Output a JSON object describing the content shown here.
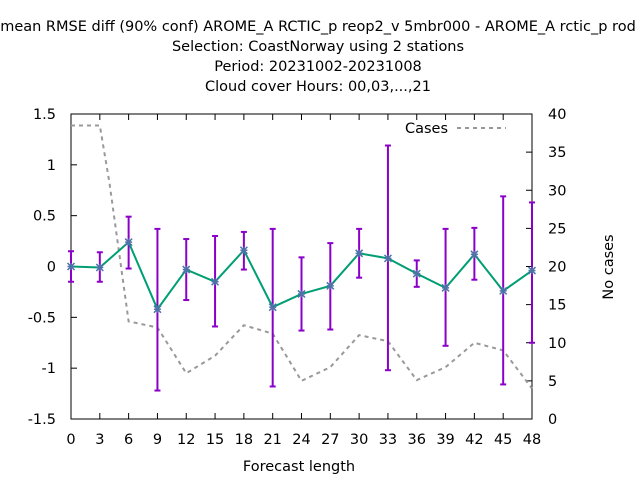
{
  "chart_data": {
    "type": "line",
    "title_lines": [
      "mean RMSE diff (90% conf) AROME_A RCTIC_p reop2_v 5mbr000 - AROME_A rctic_p rod",
      "Selection: CoastNorway using      2 stations",
      "Period: 20231002-20231008",
      "Cloud cover   Hours:  00,03,...,21"
    ],
    "xlabel": "Forecast length",
    "ylabel_right": "No cases",
    "xlim": [
      0,
      48
    ],
    "ylim": [
      -1.5,
      1.5
    ],
    "y2lim": [
      0,
      40
    ],
    "x_ticks": [
      0,
      3,
      6,
      9,
      12,
      15,
      18,
      21,
      24,
      27,
      30,
      33,
      36,
      39,
      42,
      45,
      48
    ],
    "y_ticks": [
      -1.5,
      -1,
      -0.5,
      0,
      0.5,
      1,
      1.5
    ],
    "y_tick_labels": [
      "-1.5",
      "-1",
      "-0.5",
      "0",
      "0.5",
      "1",
      "1.5"
    ],
    "y2_ticks": [
      0,
      5,
      10,
      15,
      20,
      25,
      30,
      35,
      40
    ],
    "legend_position": "top-right",
    "grid": false,
    "series": [
      {
        "role": "mean_diff",
        "color": "#009e73",
        "marker_color": "#4f72a8",
        "x": [
          0,
          3,
          6,
          9,
          12,
          15,
          18,
          21,
          24,
          27,
          30,
          33,
          36,
          39,
          42,
          45,
          48
        ],
        "y": [
          0.0,
          -0.01,
          0.24,
          -0.42,
          -0.03,
          -0.15,
          0.16,
          -0.4,
          -0.27,
          -0.19,
          0.13,
          0.08,
          -0.07,
          -0.21,
          0.12,
          -0.24,
          -0.04
        ],
        "err_low": [
          -0.15,
          -0.15,
          -0.02,
          -1.22,
          -0.33,
          -0.59,
          -0.03,
          -1.18,
          -0.63,
          -0.62,
          -0.11,
          -1.02,
          -0.2,
          -0.78,
          -0.13,
          -1.16,
          -0.75
        ],
        "err_high": [
          0.15,
          0.14,
          0.49,
          0.37,
          0.27,
          0.3,
          0.34,
          0.37,
          0.09,
          0.23,
          0.37,
          1.19,
          0.06,
          0.37,
          0.38,
          0.69,
          0.63
        ],
        "errbar_color": "#8a00c8"
      },
      {
        "name": "Cases",
        "axis": "y2",
        "color": "#999999",
        "dash": true,
        "x": [
          0,
          3,
          4,
          6,
          9,
          12,
          15,
          18,
          21,
          24,
          27,
          30,
          33,
          36,
          39,
          42,
          45,
          48
        ],
        "y": [
          38.5,
          38.5,
          31,
          12.8,
          12.0,
          6.0,
          8.3,
          12.3,
          11.2,
          5.0,
          6.8,
          11.0,
          10.2,
          5.1,
          6.8,
          10.0,
          9.0,
          4.0
        ]
      }
    ]
  }
}
